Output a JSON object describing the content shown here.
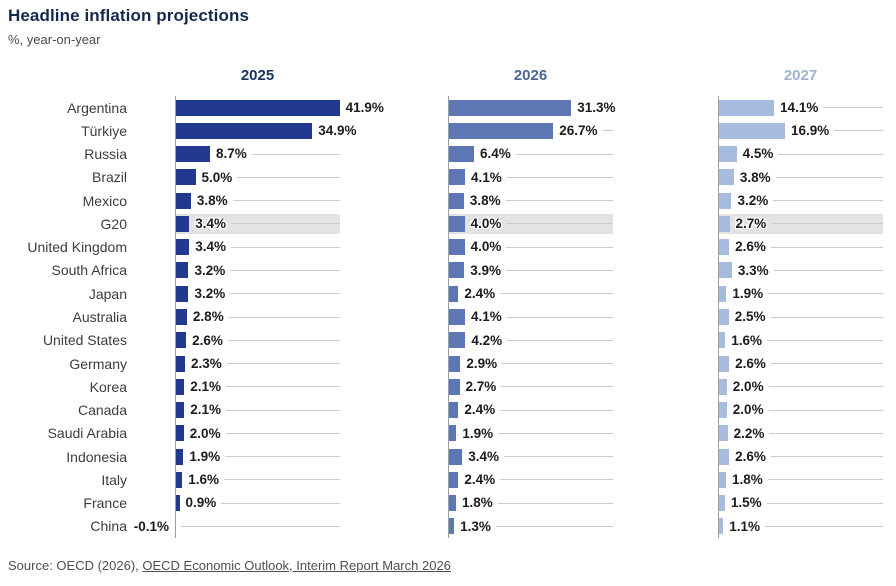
{
  "title": "Headline inflation projections",
  "subtitle": "%, year-on-year",
  "source": {
    "prefix": "Source: OECD (2026), ",
    "link": "OECD Economic Outlook, Interim Report March 2026"
  },
  "colors": {
    "bars": [
      "#213a8f",
      "#5d77b5",
      "#a7bbdf"
    ],
    "headers": [
      "#1b3562",
      "#4d6494",
      "#9db1d3"
    ],
    "highlight_band": "#e3e3e3",
    "leader_line": "#cbcbcb",
    "axis_line": "#9aa0a7",
    "title_text": "#14294e"
  },
  "chart_data": {
    "type": "bar",
    "orientation": "horizontal",
    "title": "Headline inflation projections",
    "subtitle": "%, year-on-year",
    "value_suffix": "%",
    "xlim": [
      0,
      42
    ],
    "grid": "leader-lines",
    "highlight_category": "G20",
    "categories": [
      "Argentina",
      "Türkiye",
      "Russia",
      "Brazil",
      "Mexico",
      "G20",
      "United Kingdom",
      "South Africa",
      "Japan",
      "Australia",
      "United States",
      "Germany",
      "Korea",
      "Canada",
      "Saudi Arabia",
      "Indonesia",
      "Italy",
      "France",
      "China"
    ],
    "series": [
      {
        "name": "2025",
        "values": [
          41.9,
          34.9,
          8.7,
          5.0,
          3.8,
          3.4,
          3.4,
          3.2,
          3.2,
          2.8,
          2.6,
          2.3,
          2.1,
          2.1,
          2.0,
          1.9,
          1.6,
          0.9,
          -0.1
        ]
      },
      {
        "name": "2026",
        "values": [
          31.3,
          26.7,
          6.4,
          4.1,
          3.8,
          4.0,
          4.0,
          3.9,
          2.4,
          4.1,
          4.2,
          2.9,
          2.7,
          2.4,
          1.9,
          3.4,
          2.4,
          1.8,
          1.3
        ]
      },
      {
        "name": "2027",
        "values": [
          14.1,
          16.9,
          4.5,
          3.8,
          3.2,
          2.7,
          2.6,
          3.3,
          1.9,
          2.5,
          1.6,
          2.6,
          2.0,
          2.0,
          2.2,
          2.6,
          1.8,
          1.5,
          1.1
        ]
      }
    ]
  }
}
